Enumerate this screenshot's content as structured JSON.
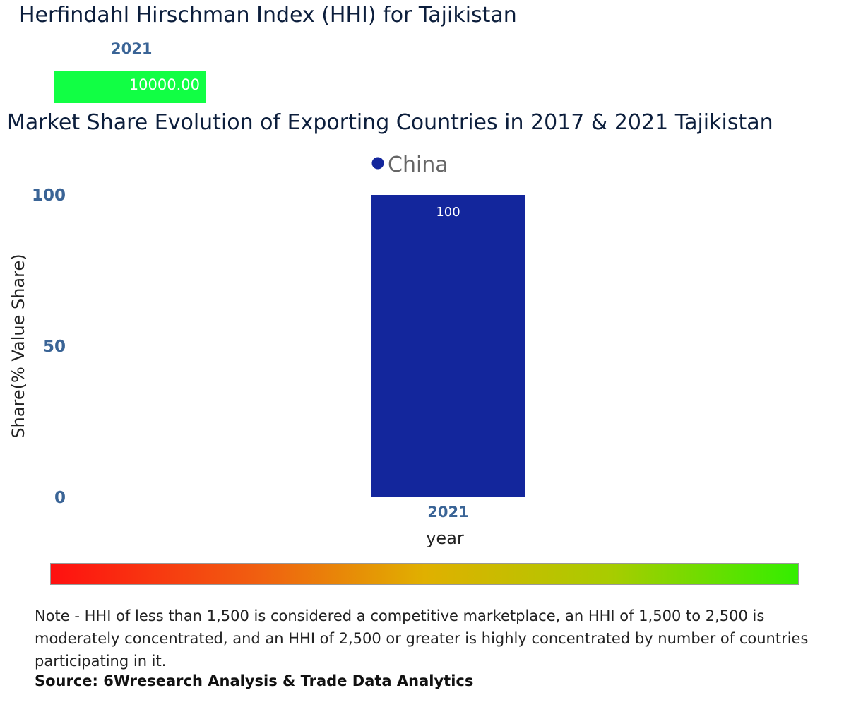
{
  "hhi": {
    "title": "Herfindahl Hirschman Index (HHI) for Tajikistan",
    "year": "2021",
    "value_label": "10000.00",
    "box_color": "#11ff44"
  },
  "chart_data": {
    "type": "bar",
    "title": "Market Share Evolution of Exporting Countries in 2017 & 2021 Tajikistan",
    "xlabel": "year",
    "ylabel": "Share(% Value Share)",
    "categories": [
      "2021"
    ],
    "series": [
      {
        "name": "China",
        "color": "#13269c",
        "values": [
          100
        ]
      }
    ],
    "data_labels": [
      "100"
    ],
    "ylim": [
      0,
      100
    ],
    "yticks": [
      {
        "value": 0,
        "label": "0"
      },
      {
        "value": 50,
        "label": "50"
      },
      {
        "value": 100,
        "label": "100"
      }
    ],
    "legend_position": "top-center",
    "grid": false
  },
  "scale_colors": [
    "#ff1010",
    "#f06010",
    "#e0b000",
    "#a8cc00",
    "#33ee00"
  ],
  "note": "Note - HHI of less than 1,500 is considered a competitive marketplace, an HHI of 1,500 to 2,500 is moderately concentrated, and an HHI of 2,500 or greater is highly concentrated by number of countries participating in it.",
  "source": "Source: 6Wresearch Analysis & Trade Data Analytics"
}
